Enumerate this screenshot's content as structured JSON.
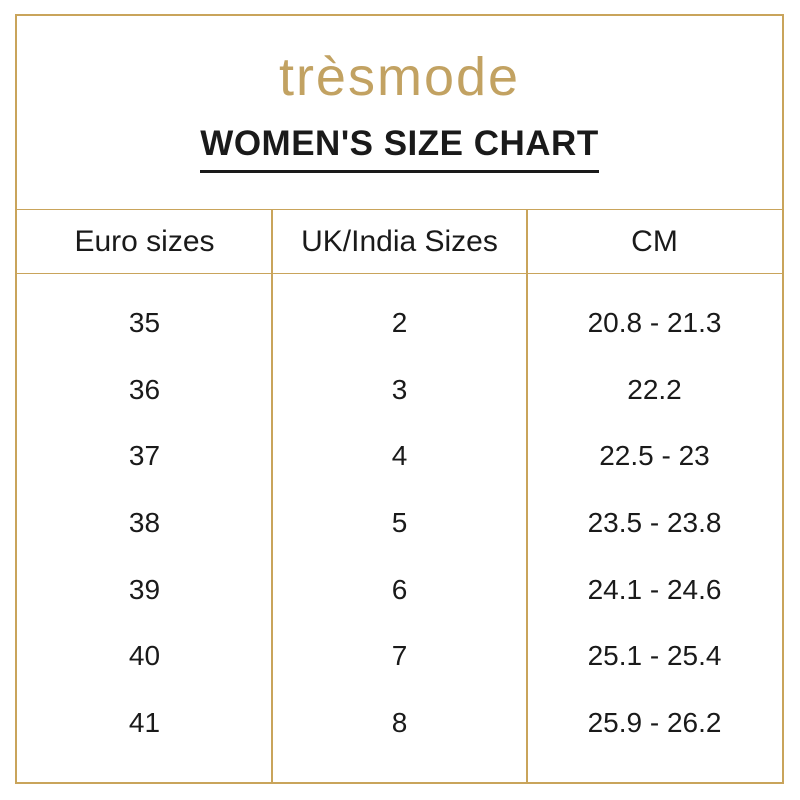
{
  "brand": {
    "logo_text": "trèsmode",
    "logo_color": "#C2A262"
  },
  "title": "WOMEN'S SIZE CHART",
  "colors": {
    "border_gold": "#C9A45B",
    "text": "#1A1A1A",
    "background": "#FFFFFF"
  },
  "table": {
    "headers": [
      "Euro sizes",
      "UK/India Sizes",
      "CM"
    ],
    "rows": [
      {
        "euro": "35",
        "uk": "2",
        "cm": "20.8 - 21.3"
      },
      {
        "euro": "36",
        "uk": "3",
        "cm": "22.2"
      },
      {
        "euro": "37",
        "uk": "4",
        "cm": "22.5 - 23"
      },
      {
        "euro": "38",
        "uk": "5",
        "cm": "23.5 - 23.8"
      },
      {
        "euro": "39",
        "uk": "6",
        "cm": "24.1 - 24.6"
      },
      {
        "euro": "40",
        "uk": "7",
        "cm": "25.1 - 25.4"
      },
      {
        "euro": "41",
        "uk": "8",
        "cm": "25.9 - 26.2"
      }
    ]
  },
  "chart_data": {
    "type": "table",
    "title": "WOMEN'S SIZE CHART",
    "columns": [
      "Euro sizes",
      "UK/India Sizes",
      "CM"
    ],
    "rows": [
      [
        "35",
        "2",
        "20.8 - 21.3"
      ],
      [
        "36",
        "3",
        "22.2"
      ],
      [
        "37",
        "4",
        "22.5 - 23"
      ],
      [
        "38",
        "5",
        "23.5 - 23.8"
      ],
      [
        "39",
        "6",
        "24.1 - 24.6"
      ],
      [
        "40",
        "7",
        "25.1 - 25.4"
      ],
      [
        "41",
        "8",
        "25.9 - 26.2"
      ]
    ]
  }
}
